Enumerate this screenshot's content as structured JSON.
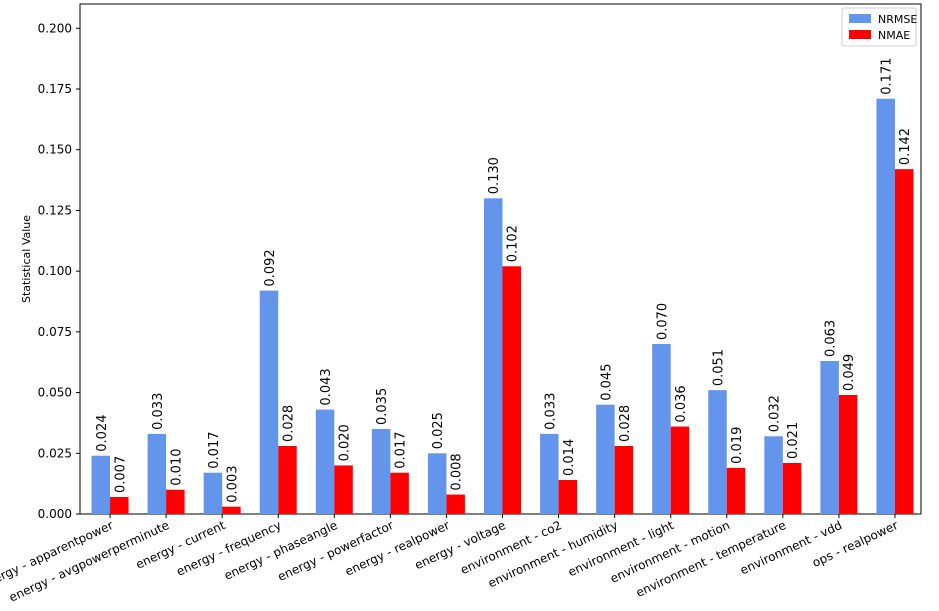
{
  "chart_data": {
    "type": "bar",
    "title": "",
    "xlabel": "",
    "ylabel": "Statistical Value",
    "ylim": [
      0,
      0.21
    ],
    "yticks": [
      "0.000",
      "0.025",
      "0.050",
      "0.075",
      "0.100",
      "0.125",
      "0.150",
      "0.175",
      "0.200"
    ],
    "categories": [
      "energy - apparentpower",
      "energy - avgpowerperminute",
      "energy - current",
      "energy - frequency",
      "energy - phaseangle",
      "energy - powerfactor",
      "energy - realpower",
      "energy - voltage",
      "environment - co2",
      "environment - humidity",
      "environment - light",
      "environment - motion",
      "environment - temperature",
      "environment - vdd",
      "ops - realpower"
    ],
    "series": [
      {
        "name": "NRMSE",
        "color": "#6495ED",
        "values": [
          0.024,
          0.033,
          0.017,
          0.092,
          0.043,
          0.035,
          0.025,
          0.13,
          0.033,
          0.045,
          0.07,
          0.051,
          0.032,
          0.063,
          0.171
        ],
        "labels": [
          "0.024",
          "0.033",
          "0.017",
          "0.092",
          "0.043",
          "0.035",
          "0.025",
          "0.130",
          "0.033",
          "0.045",
          "0.070",
          "0.051",
          "0.032",
          "0.063",
          "0.171"
        ]
      },
      {
        "name": "NMAE",
        "color": "#FF0000",
        "values": [
          0.007,
          0.01,
          0.003,
          0.028,
          0.02,
          0.017,
          0.008,
          0.102,
          0.014,
          0.028,
          0.036,
          0.019,
          0.021,
          0.049,
          0.142
        ],
        "labels": [
          "0.007",
          "0.010",
          "0.003",
          "0.028",
          "0.020",
          "0.017",
          "0.008",
          "0.102",
          "0.014",
          "0.028",
          "0.036",
          "0.019",
          "0.021",
          "0.049",
          "0.142"
        ]
      }
    ],
    "legend": "top-right",
    "grid": false
  }
}
